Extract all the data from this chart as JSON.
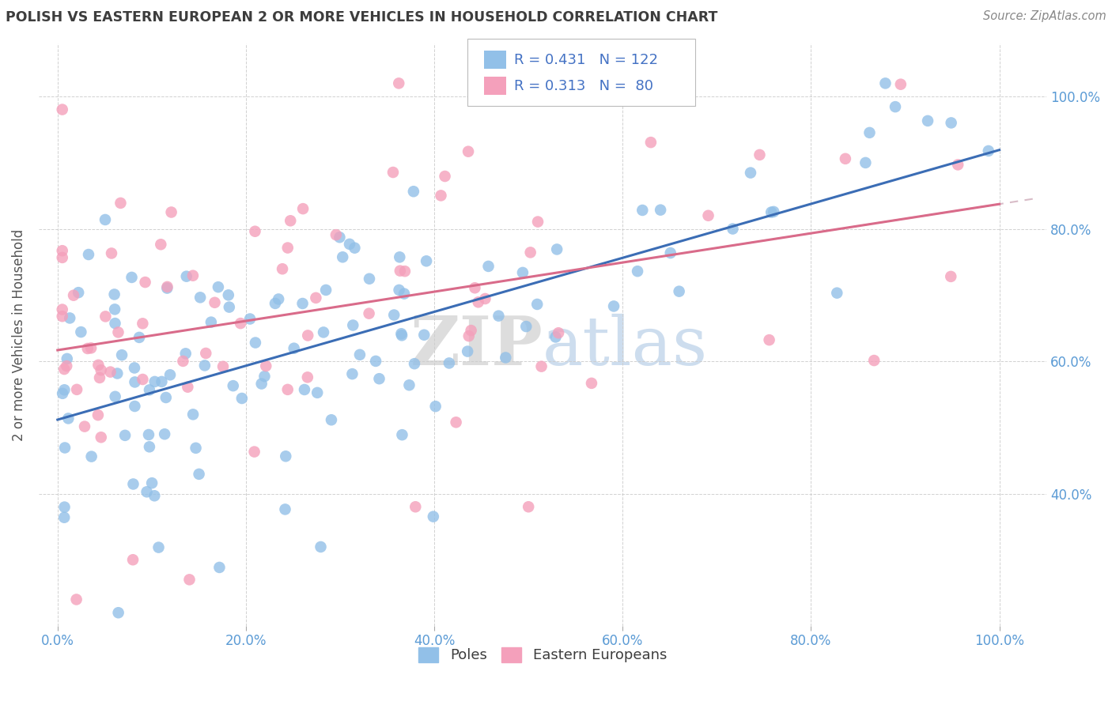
{
  "title": "POLISH VS EASTERN EUROPEAN 2 OR MORE VEHICLES IN HOUSEHOLD CORRELATION CHART",
  "source": "Source: ZipAtlas.com",
  "ylabel": "2 or more Vehicles in Household",
  "legend_labels": [
    "Poles",
    "Eastern Europeans"
  ],
  "blue_R": 0.431,
  "blue_N": 122,
  "pink_R": 0.313,
  "pink_N": 80,
  "blue_color": "#92C0E8",
  "pink_color": "#F4A0BB",
  "blue_line_color": "#3B6DB5",
  "pink_line_color": "#D96B8A",
  "title_color": "#3D3D3D",
  "axis_label_color": "#5B9BD5",
  "legend_R_color": "#4472C4",
  "blue_line_intercept": 0.545,
  "blue_line_slope": 0.355,
  "pink_line_intercept": 0.645,
  "pink_line_slope": 0.245,
  "watermark_zip": "ZIP",
  "watermark_atlas": "atlas",
  "xtick_vals": [
    0.0,
    0.2,
    0.4,
    0.6,
    0.8,
    1.0
  ],
  "ytick_vals": [
    0.4,
    0.6,
    0.8,
    1.0
  ],
  "xlim": [
    -0.02,
    1.05
  ],
  "ylim": [
    0.2,
    1.08
  ]
}
